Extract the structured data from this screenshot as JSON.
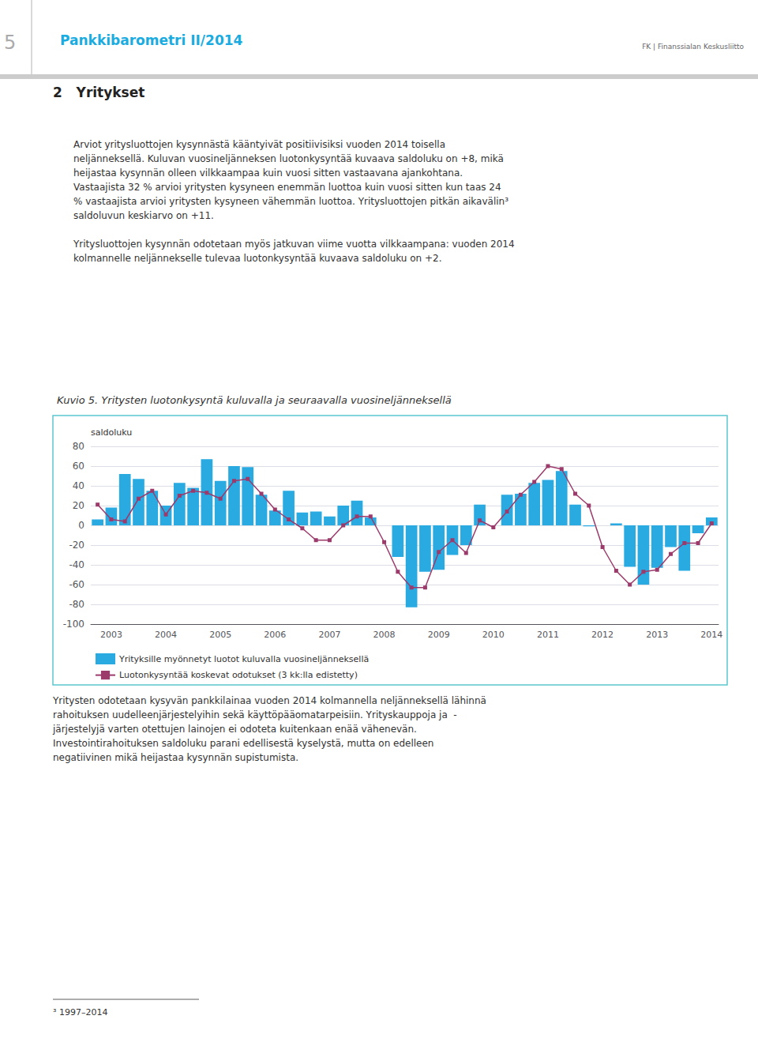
{
  "chart_data": {
    "type": "bar",
    "title": "Kuvio 5. Yritysten luotonkysyntä kuluvalla ja seuraavalla vuosineljänneksellä",
    "ylabel": "saldoluku",
    "categories": [
      null,
      "2003",
      null,
      null,
      null,
      "2004",
      null,
      null,
      null,
      "2005",
      null,
      null,
      null,
      "2006",
      null,
      null,
      null,
      "2007",
      null,
      null,
      null,
      "2008",
      null,
      null,
      null,
      "2009",
      null,
      null,
      null,
      "2010",
      null,
      null,
      null,
      "2011",
      null,
      null,
      null,
      "2012",
      null,
      null,
      null,
      "2013",
      null,
      null,
      null,
      "2014"
    ],
    "series": [
      {
        "name": "Yrityksille myönnetyt luotot kuluvalla vuosineljänneksellä",
        "type": "bar",
        "color": "#29ABE2",
        "values": [
          6,
          18,
          52,
          47,
          35,
          20,
          43,
          38,
          67,
          45,
          60,
          59,
          31,
          15,
          35,
          13,
          14,
          9,
          20,
          25,
          8,
          0,
          -32,
          -83,
          -47,
          -45,
          -30,
          -20,
          21,
          0,
          31,
          32,
          43,
          46,
          55,
          21,
          -1,
          0,
          2,
          -42,
          -60,
          -43,
          -22,
          -46,
          -8,
          8
        ]
      },
      {
        "name": "Luotonkysyntää koskevat odotukset (3 kk:lla edistetty)",
        "type": "line",
        "color": "#9B3A6B",
        "marker": "square",
        "values": [
          21,
          6,
          4,
          27,
          35,
          11,
          30,
          35,
          33,
          27,
          45,
          47,
          32,
          16,
          6,
          -3,
          -15,
          -15,
          0,
          9,
          9,
          -17,
          -47,
          -63,
          -63,
          -27,
          -15,
          -28,
          5,
          -2,
          14,
          31,
          44,
          60,
          57,
          32,
          20,
          -22,
          -46,
          -60,
          -47,
          -45,
          -29,
          -18,
          -18,
          2
        ]
      }
    ],
    "ylim": [
      -100,
      80
    ],
    "yticks": [
      -100,
      -80,
      -60,
      -40,
      -20,
      0,
      20,
      40,
      60,
      80
    ],
    "grid": true,
    "legend": "lower left"
  },
  "header_num": "5",
  "header_title": "Pankkibarometri II/2014",
  "logo_text": "FK | Finanssialan Keskusliitto",
  "section_title": "2   Yritykset",
  "body_text": "Arviot yritysluottojen kysynnästä kääntyivät positiivisiksi vuoden 2014 toisella\nneljänneksellä. Kuluvan vuosineljänneksen luotonkysyntää kuvaava saldoluku on +8, mikä\nheijastaa kysynnän olleen vilkkaampaa kuin vuosi sitten vastaavana ajankohtana.\nVastaajista 32 % arvioi yritysten kysyneen enemmän luottoa kuin vuosi sitten kun taas 24\n% vastaajista arvioi yritysten kysyneen vähemmän luottoa. Yritysluottojen pitkän aikavälin³\nsaldoluvun keskiarvo on +11.\n\nYritysluottojen kysynnän odotetaan myös jatkuvan viime vuotta vilkkaampana: vuoden 2014\nkolmannelle neljännekselle tulevaa luotonkysyntää kuvaava saldoluku on +2.",
  "bottom_text": "Yritysten odotetaan kysyvän pankkilainaa vuoden 2014 kolmannella neljänneksellä lähinnä\nrahoituksen uudelleenjärjestelyihin sekä käyttöpääomatarpeisiin. Yrityskauppoja ja  -\njärjestelyjä varten otettujen lainojen ei odoteta kuitenkaan enää vähenevän.\nInvestointirahoituksen saldoluku parani edellisestä kyselystä, mutta on edelleen\nnegatiivinen mikä heijastaa kysynnän supistumista.",
  "footer_text": "³ 1997–2014"
}
